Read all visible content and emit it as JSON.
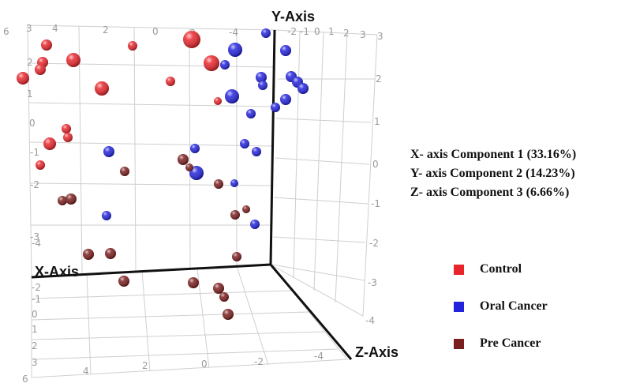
{
  "chart_data": {
    "type": "scatter",
    "projection": "3d",
    "axis_titles": {
      "x": "X-Axis",
      "y": "Y-Axis",
      "z": "Z-Axis"
    },
    "components": [
      "X- axis Component 1 (33.16%)",
      "Y- axis Component 2 (14.23%)",
      "Z- axis Component 3 (6.66%)"
    ],
    "ticks": {
      "top": [
        "6",
        "3",
        "4",
        "2",
        "0",
        "-2",
        "-4",
        "-2",
        "-1",
        "0",
        "1",
        "2",
        "3"
      ],
      "right": [
        "3",
        "2",
        "1",
        "0",
        "-1",
        "-2",
        "-3",
        "-4"
      ],
      "left": [
        "2",
        "1",
        "0",
        "-1",
        "-2",
        "-3",
        "-4"
      ],
      "bottom_x": [
        "6",
        "4",
        "2",
        "0",
        "-2",
        "-4"
      ],
      "bottom_z": [
        "-2",
        "-1",
        "0",
        "1",
        "2",
        "3"
      ]
    },
    "legend_position": "right",
    "series": [
      {
        "name": "Control",
        "color": "#e8252b",
        "points": [
          [
            59,
            57,
            7
          ],
          [
            54,
            79,
            7
          ],
          [
            51,
            88,
            7
          ],
          [
            29,
            99,
            8
          ],
          [
            93,
            76,
            9
          ],
          [
            129,
            112,
            9
          ],
          [
            168,
            58,
            6
          ],
          [
            216,
            103,
            6
          ],
          [
            243,
            50,
            11
          ],
          [
            268,
            80,
            10
          ],
          [
            276,
            128,
            5
          ],
          [
            84,
            163,
            6
          ],
          [
            86,
            174,
            6
          ],
          [
            63,
            182,
            8
          ],
          [
            51,
            209,
            6
          ]
        ]
      },
      {
        "name": "Oral Cancer",
        "color": "#2323dd",
        "points": [
          [
            298,
            63,
            9
          ],
          [
            285,
            82,
            6
          ],
          [
            337,
            42,
            6
          ],
          [
            362,
            64,
            7
          ],
          [
            331,
            98,
            7
          ],
          [
            333,
            108,
            6
          ],
          [
            369,
            97,
            7
          ],
          [
            377,
            104,
            7
          ],
          [
            384,
            112,
            7
          ],
          [
            362,
            126,
            7
          ],
          [
            349,
            136,
            6
          ],
          [
            294,
            122,
            9
          ],
          [
            318,
            144,
            6
          ],
          [
            310,
            182,
            6
          ],
          [
            325,
            192,
            6
          ],
          [
            247,
            188,
            6
          ],
          [
            138,
            192,
            7
          ],
          [
            249,
            219,
            9
          ],
          [
            297,
            232,
            5
          ],
          [
            135,
            273,
            6
          ],
          [
            323,
            284,
            6
          ]
        ]
      },
      {
        "name": "Pre Cancer",
        "color": "#7b1e1e",
        "points": [
          [
            158,
            217,
            6
          ],
          [
            232,
            202,
            7
          ],
          [
            240,
            212,
            5
          ],
          [
            277,
            233,
            6
          ],
          [
            79,
            254,
            6
          ],
          [
            90,
            252,
            7
          ],
          [
            298,
            272,
            6
          ],
          [
            312,
            265,
            5
          ],
          [
            112,
            322,
            7
          ],
          [
            140,
            321,
            7
          ],
          [
            300,
            325,
            6
          ],
          [
            157,
            356,
            7
          ],
          [
            245,
            358,
            7
          ],
          [
            277,
            365,
            7
          ],
          [
            284,
            376,
            6
          ],
          [
            289,
            398,
            7
          ]
        ]
      }
    ]
  }
}
